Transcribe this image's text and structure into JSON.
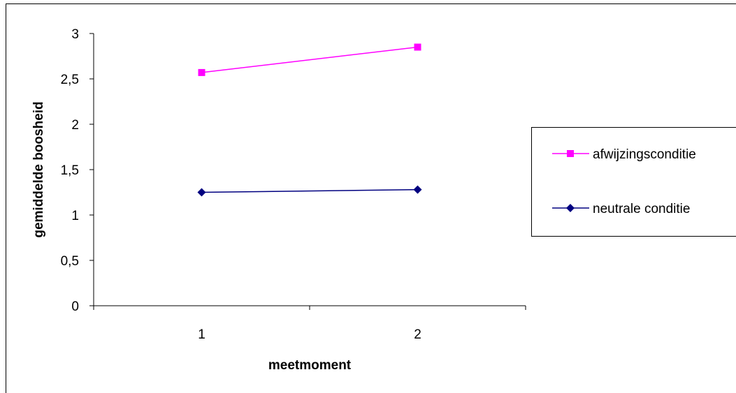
{
  "chart_data": {
    "type": "line",
    "title": "",
    "xlabel": "meetmoment",
    "ylabel": "gemiddelde boosheid",
    "categories": [
      "1",
      "2"
    ],
    "y_ticks": [
      "0",
      "0,5",
      "1",
      "1,5",
      "2",
      "2,5",
      "3"
    ],
    "ylim": [
      0,
      3
    ],
    "grid": false,
    "legend_position": "right",
    "series": [
      {
        "name": "afwijzingsconditie",
        "values": [
          2.57,
          2.85
        ],
        "color": "#ff00ff",
        "marker": "square"
      },
      {
        "name": "neutrale conditie",
        "values": [
          1.25,
          1.28
        ],
        "color": "#000080",
        "marker": "diamond"
      }
    ]
  }
}
